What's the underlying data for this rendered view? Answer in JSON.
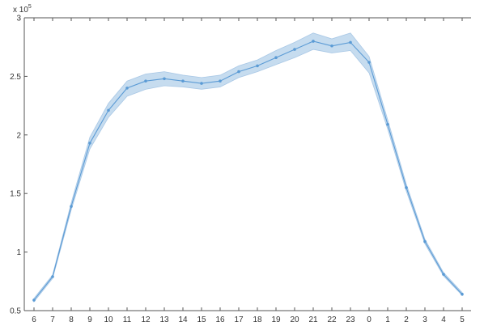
{
  "chart_data": {
    "type": "line",
    "title": "",
    "xlabel": "",
    "ylabel": "",
    "exponent_label": "x 10",
    "exponent_power": "5",
    "categories": [
      "6",
      "7",
      "8",
      "9",
      "10",
      "11",
      "12",
      "13",
      "14",
      "15",
      "16",
      "17",
      "18",
      "19",
      "20",
      "21",
      "22",
      "23",
      "0",
      "1",
      "2",
      "3",
      "4",
      "5"
    ],
    "series": [
      {
        "values": [
          0.59,
          0.79,
          1.39,
          1.93,
          2.21,
          2.4,
          2.46,
          2.48,
          2.46,
          2.44,
          2.46,
          2.54,
          2.59,
          2.66,
          2.73,
          2.8,
          2.76,
          2.79,
          2.62,
          2.09,
          1.55,
          1.09,
          0.81,
          0.64
        ],
        "lower": [
          0.575,
          0.775,
          1.36,
          1.88,
          2.15,
          2.33,
          2.39,
          2.42,
          2.41,
          2.39,
          2.41,
          2.49,
          2.54,
          2.6,
          2.66,
          2.73,
          2.7,
          2.72,
          2.53,
          2.05,
          1.52,
          1.07,
          0.795,
          0.63
        ],
        "upper": [
          0.605,
          0.805,
          1.42,
          1.98,
          2.27,
          2.46,
          2.52,
          2.54,
          2.51,
          2.49,
          2.51,
          2.59,
          2.64,
          2.72,
          2.79,
          2.87,
          2.82,
          2.87,
          2.67,
          2.13,
          1.58,
          1.11,
          0.825,
          0.655
        ]
      }
    ],
    "yticks": [
      0.5,
      1,
      1.5,
      2,
      2.5,
      3
    ],
    "ytick_labels": [
      "0.5",
      "1",
      "1.5",
      "2",
      "2.5",
      "3"
    ],
    "ylim": [
      0.5,
      3
    ],
    "grid": false,
    "colors": {
      "line": "#5b9bd5",
      "band": "#c6dcef",
      "axis": "#555555"
    }
  }
}
